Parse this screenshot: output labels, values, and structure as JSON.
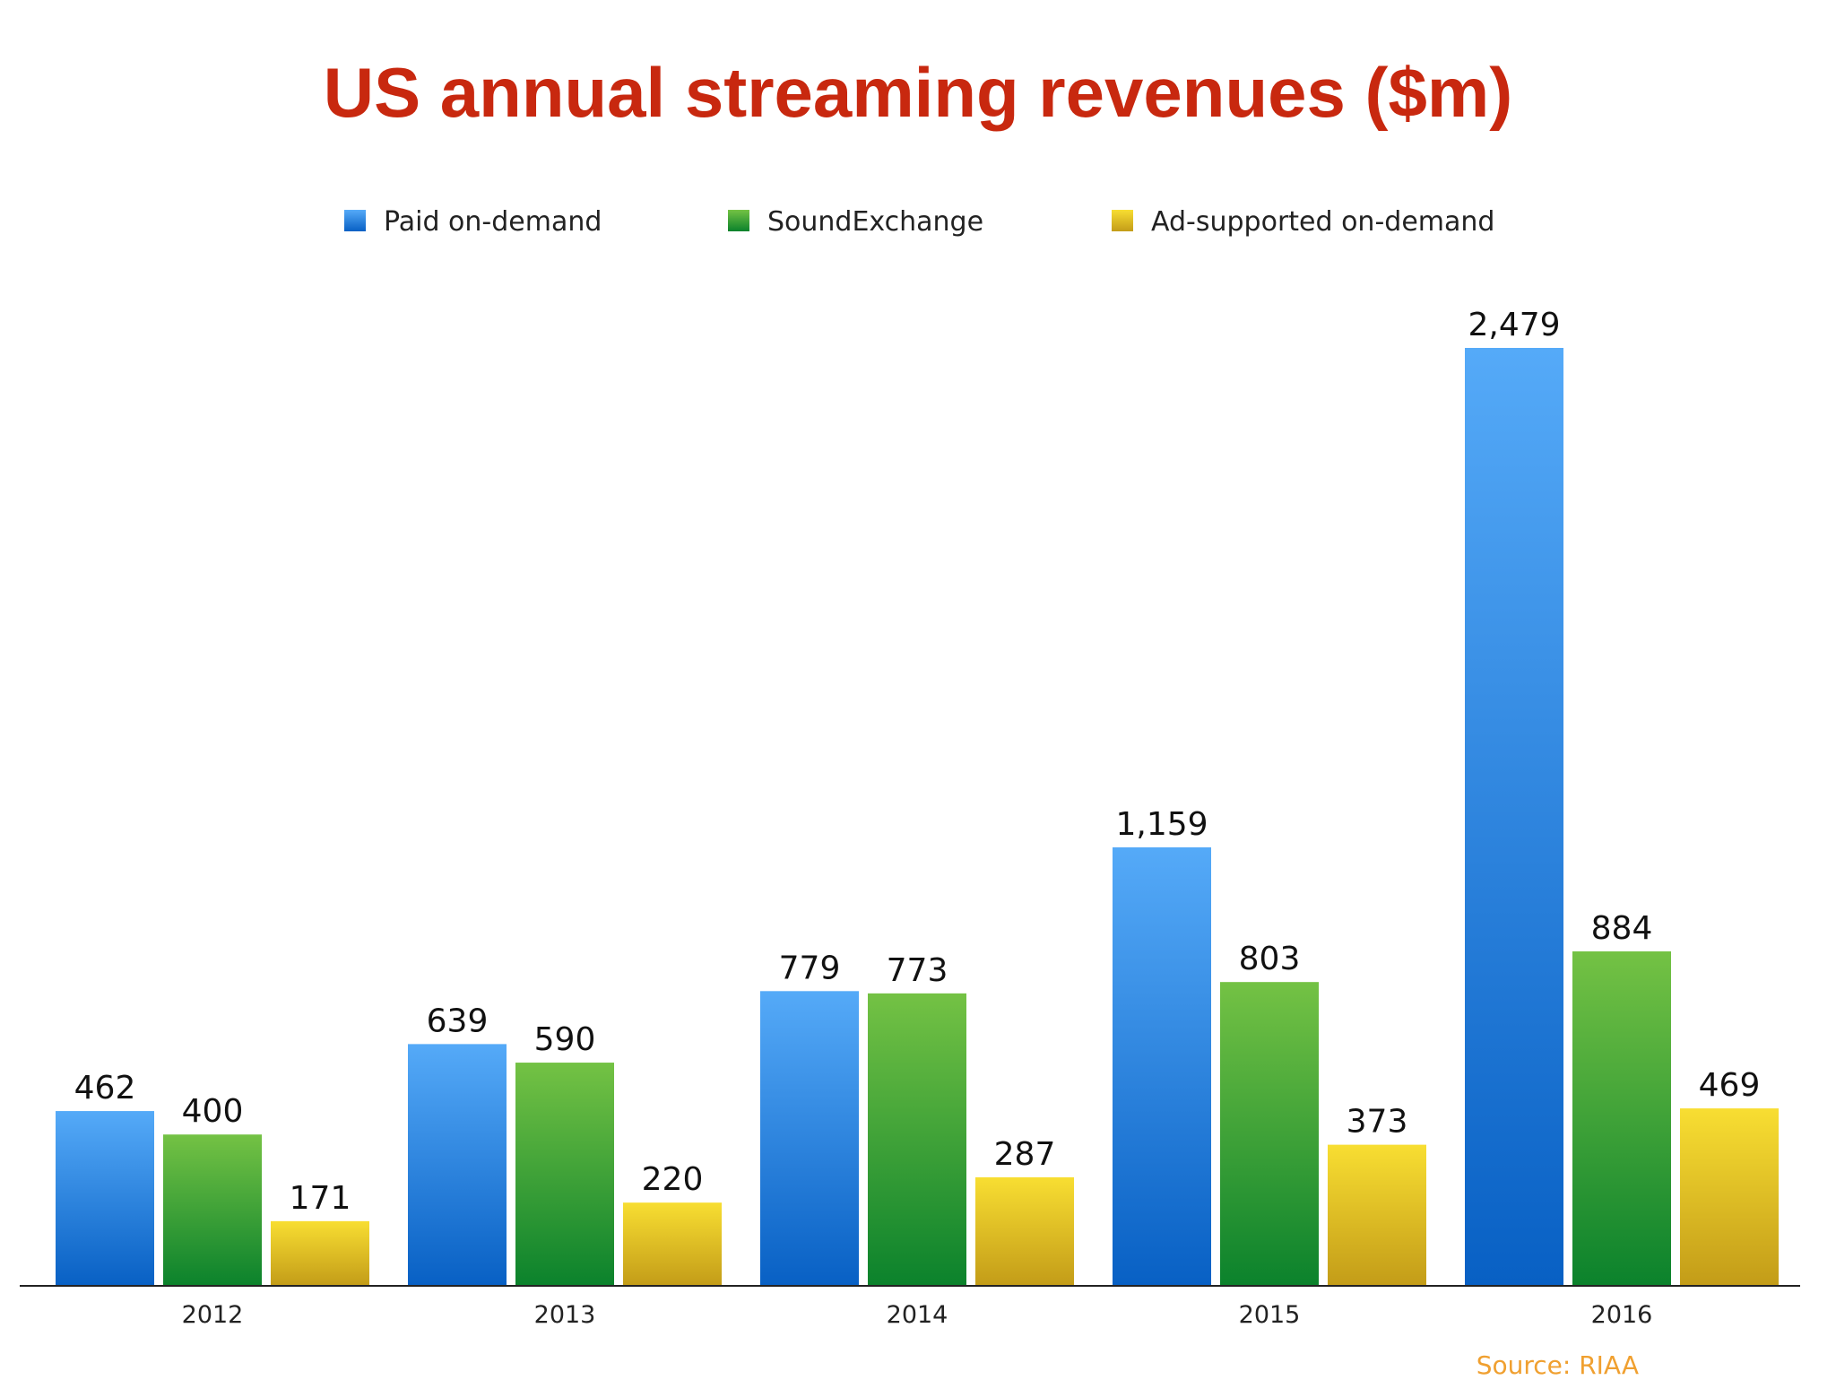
{
  "chart_data": {
    "type": "bar",
    "title": "US annual streaming revenues ($m)",
    "categories": [
      "2012",
      "2013",
      "2014",
      "2015",
      "2016"
    ],
    "series": [
      {
        "name": "Paid on-demand",
        "values": [
          462,
          639,
          779,
          1159,
          2479
        ],
        "labels": [
          "462",
          "639",
          "779",
          "1,159",
          "2,479"
        ],
        "color_top": "#55aaf8",
        "color_bottom": "#0860c4"
      },
      {
        "name": "SoundExchange",
        "values": [
          400,
          590,
          773,
          803,
          884
        ],
        "labels": [
          "400",
          "590",
          "773",
          "803",
          "884"
        ],
        "color_top": "#74c244",
        "color_bottom": "#0b822c"
      },
      {
        "name": "Ad-supported on-demand",
        "values": [
          171,
          220,
          287,
          373,
          469
        ],
        "labels": [
          "171",
          "220",
          "287",
          "373",
          "469"
        ],
        "color_top": "#f8de32",
        "color_bottom": "#c39c18"
      }
    ],
    "ylim": [
      0,
      2479
    ],
    "xlabel": "",
    "ylabel": "",
    "grid": false,
    "legend": "top",
    "source": "Source: RIAA",
    "title_color": "#c8280f",
    "source_color": "#f0a030"
  }
}
